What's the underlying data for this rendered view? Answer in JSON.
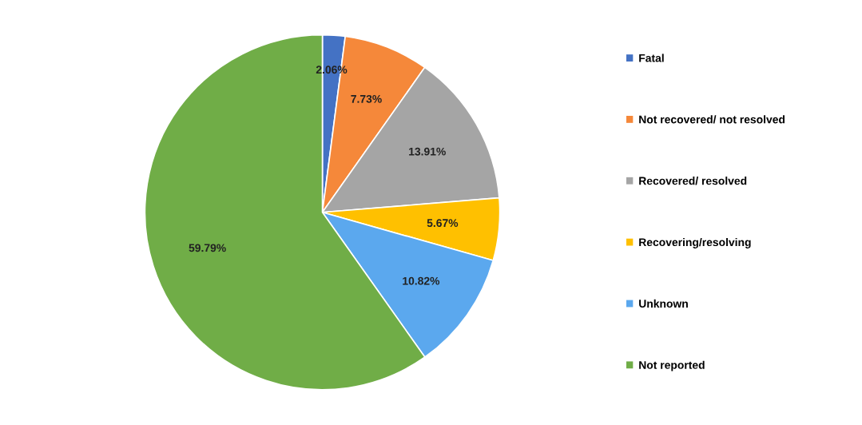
{
  "chart_data": {
    "type": "pie",
    "categories": [
      "Fatal",
      "Not recovered/ not resolved",
      "Recovered/ resolved",
      "Recovering/resolving",
      "Unknown",
      "Not reported"
    ],
    "values": [
      2.06,
      7.73,
      13.91,
      5.67,
      10.82,
      59.79
    ],
    "colors": [
      "#4472c4",
      "#f5883a",
      "#a5a5a5",
      "#ffc000",
      "#5ba8ee",
      "#70ad47"
    ],
    "value_labels": [
      "2.06%",
      "7.73%",
      "13.91%",
      "5.67%",
      "10.82%",
      "59.79%"
    ],
    "legend": "right"
  }
}
